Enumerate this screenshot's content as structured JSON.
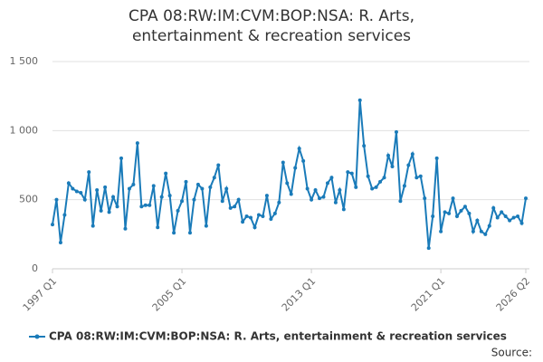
{
  "chart_data": {
    "type": "line",
    "title": "CPA 08:RW:IM:CVM:BOP:NSA: R. Arts, entertainment & recreation services",
    "categories": [
      "1997 Q1",
      null,
      null,
      null,
      null,
      null,
      null,
      null,
      null,
      null,
      null,
      null,
      null,
      null,
      null,
      null,
      null,
      null,
      null,
      null,
      null,
      null,
      null,
      null,
      null,
      null,
      null,
      null,
      null,
      null,
      null,
      null,
      "2005 Q1",
      null,
      null,
      null,
      null,
      null,
      null,
      null,
      null,
      null,
      null,
      null,
      null,
      null,
      null,
      null,
      null,
      null,
      null,
      null,
      null,
      null,
      null,
      null,
      null,
      null,
      null,
      null,
      null,
      null,
      null,
      null,
      "2013 Q1",
      null,
      null,
      null,
      null,
      null,
      null,
      null,
      null,
      null,
      null,
      null,
      null,
      null,
      null,
      null,
      null,
      null,
      null,
      null,
      null,
      null,
      null,
      null,
      null,
      null,
      null,
      null,
      null,
      null,
      null,
      null,
      "2021 Q1",
      null,
      null,
      null,
      null,
      null,
      null,
      null,
      null,
      null,
      null,
      null,
      null,
      null,
      null,
      null,
      null,
      null,
      null,
      null,
      null,
      "2026 Q2"
    ],
    "series": [
      {
        "name": "CPA 08:RW:IM:CVM:BOP:NSA: R. Arts, entertainment & recreation services",
        "color": "#1a7bb9",
        "values": [
          320,
          500,
          190,
          390,
          620,
          580,
          560,
          550,
          500,
          700,
          310,
          570,
          420,
          590,
          410,
          520,
          450,
          800,
          290,
          580,
          610,
          910,
          450,
          460,
          460,
          600,
          300,
          520,
          690,
          530,
          260,
          420,
          490,
          630,
          260,
          500,
          610,
          580,
          310,
          590,
          660,
          750,
          490,
          580,
          440,
          450,
          500,
          340,
          380,
          370,
          300,
          390,
          380,
          530,
          360,
          400,
          480,
          770,
          620,
          540,
          730,
          870,
          780,
          580,
          500,
          570,
          510,
          520,
          620,
          660,
          480,
          570,
          430,
          700,
          690,
          590,
          1220,
          890,
          670,
          580,
          590,
          630,
          660,
          820,
          740,
          990,
          490,
          600,
          750,
          830,
          660,
          670,
          510,
          150,
          380,
          800,
          270,
          410,
          400,
          510,
          380,
          420,
          450,
          400,
          270,
          350,
          270,
          250,
          310,
          440,
          370,
          410,
          380,
          350,
          370,
          380,
          330,
          510
        ]
      }
    ],
    "ylim": [
      0,
      1500
    ],
    "yticks": [
      0,
      500,
      {
        "value": 1000,
        "label": "1 000"
      },
      {
        "value": 1500,
        "label": "1 500"
      }
    ],
    "grid": true,
    "legend": "bottom",
    "footer": "Source:"
  }
}
